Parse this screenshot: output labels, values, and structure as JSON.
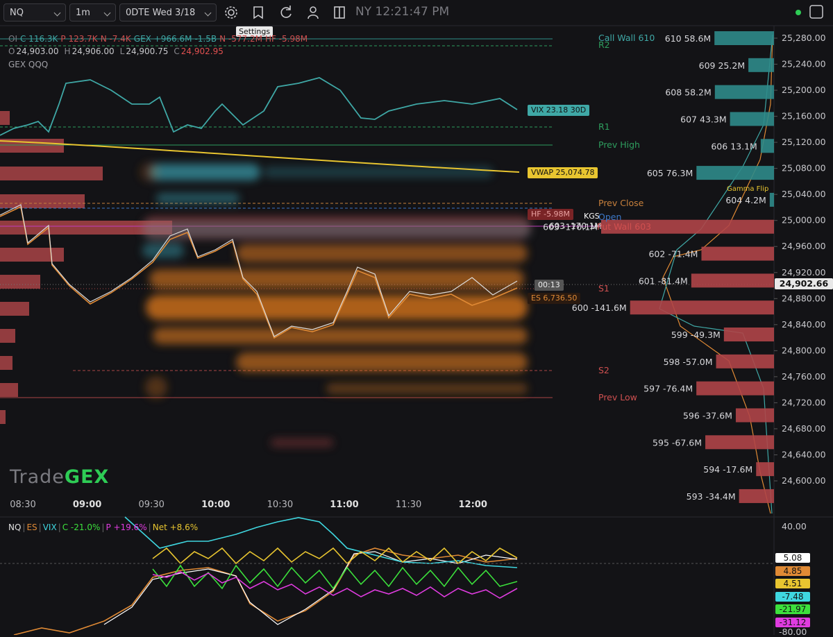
{
  "toolbar": {
    "symbol": "NQ",
    "interval": "1m",
    "expiry": "0DTE Wed 3/18",
    "clock": "NY 12:21:47 PM",
    "tooltip": "Settings"
  },
  "info": {
    "line1": [
      "OI",
      "C 116.3K",
      "P 123.7K",
      "N -7.4K",
      "GEX +966.6M",
      "-1.5B",
      "N -577.2M",
      "HF -5.98M"
    ],
    "ohlc": [
      [
        "O",
        "24,903.00"
      ],
      [
        "H",
        "24,906.00"
      ],
      [
        "L",
        "24,900.75"
      ],
      [
        "C",
        "24,902.95"
      ]
    ],
    "study": "GEX QQQ"
  },
  "levels": {
    "call_wall": "Call Wall 610",
    "r2": "R2",
    "r1": "R1",
    "prev_high": "Prev High",
    "prev_close": "Prev Close",
    "kgs": "KGS",
    "open": "Open",
    "put_wall": "Put Wall 603",
    "s1": "S1",
    "s2": "S2",
    "prev_low": "Prev Low",
    "gamma_flip": "Gamma Flip"
  },
  "tags": {
    "vix": "VIX 23.18 30D",
    "vwap": "VWAP 25,074.78",
    "hf": "HF -5.98M",
    "strike_603": "603 -170.1M",
    "countdown": "00:13",
    "es": "ES 6,736.50",
    "last_price": "24,902.66"
  },
  "strikes": [
    {
      "strike": 610,
      "value": 58.6,
      "label": "58.6M"
    },
    {
      "strike": 609,
      "value": 25.2,
      "label": "25.2M"
    },
    {
      "strike": 608,
      "value": 58.2,
      "label": "58.2M"
    },
    {
      "strike": 607,
      "value": 43.3,
      "label": "43.3M"
    },
    {
      "strike": 606,
      "value": 13.1,
      "label": "13.1M"
    },
    {
      "strike": 605,
      "value": 76.3,
      "label": "76.3M"
    },
    {
      "strike": 604,
      "value": 4.2,
      "label": "4.2M"
    },
    {
      "strike": 603,
      "value": -170.1,
      "label": "-170.1M"
    },
    {
      "strike": 602,
      "value": -71.4,
      "label": "-71.4M"
    },
    {
      "strike": 601,
      "value": -81.4,
      "label": "-81.4M"
    },
    {
      "strike": 600,
      "value": -141.6,
      "label": "-141.6M"
    },
    {
      "strike": 599,
      "value": -49.3,
      "label": "-49.3M"
    },
    {
      "strike": 598,
      "value": -57.0,
      "label": "-57.0M"
    },
    {
      "strike": 597,
      "value": -76.4,
      "label": "-76.4M"
    },
    {
      "strike": 596,
      "value": -37.6,
      "label": "-37.6M"
    },
    {
      "strike": 595,
      "value": -67.6,
      "label": "-67.6M"
    },
    {
      "strike": 594,
      "value": -17.6,
      "label": "-17.6M"
    },
    {
      "strike": 593,
      "value": -34.4,
      "label": "-34.4M"
    }
  ],
  "price_axis": [
    {
      "value": 25280,
      "label": "25,280.00"
    },
    {
      "value": 25240,
      "label": "25,240.00"
    },
    {
      "value": 25200,
      "label": "25,200.00"
    },
    {
      "value": 25160,
      "label": "25,160.00"
    },
    {
      "value": 25120,
      "label": "25,120.00"
    },
    {
      "value": 25080,
      "label": "25,080.00"
    },
    {
      "value": 25040,
      "label": "25,040.00"
    },
    {
      "value": 25000,
      "label": "25,000.00"
    },
    {
      "value": 24960,
      "label": "24,960.00"
    },
    {
      "value": 24920,
      "label": "24,920.00"
    },
    {
      "value": 24880,
      "label": "24,880.00"
    },
    {
      "value": 24840,
      "label": "24,840.00"
    },
    {
      "value": 24800,
      "label": "24,800.00"
    },
    {
      "value": 24760,
      "label": "24,760.00"
    },
    {
      "value": 24720,
      "label": "24,720.00"
    },
    {
      "value": 24680,
      "label": "24,680.00"
    },
    {
      "value": 24640,
      "label": "24,640.00"
    },
    {
      "value": 24600,
      "label": "24,600.00"
    }
  ],
  "time_axis": [
    "08:30",
    "09:00",
    "09:30",
    "10:00",
    "10:30",
    "11:00",
    "11:30",
    "12:00"
  ],
  "watermark": {
    "a": "Trade",
    "b": "GEX"
  },
  "lower": {
    "legend": [
      "NQ",
      "ES",
      "VIX",
      "C -21.0%",
      "P +19.6%",
      "Net +8.6%"
    ],
    "axis_top": "40.00",
    "axis_bottom": "-80.00",
    "tags": [
      "5.08",
      "4.85",
      "4.51",
      "-7.48",
      "-21.97",
      "-31.12"
    ]
  }
}
